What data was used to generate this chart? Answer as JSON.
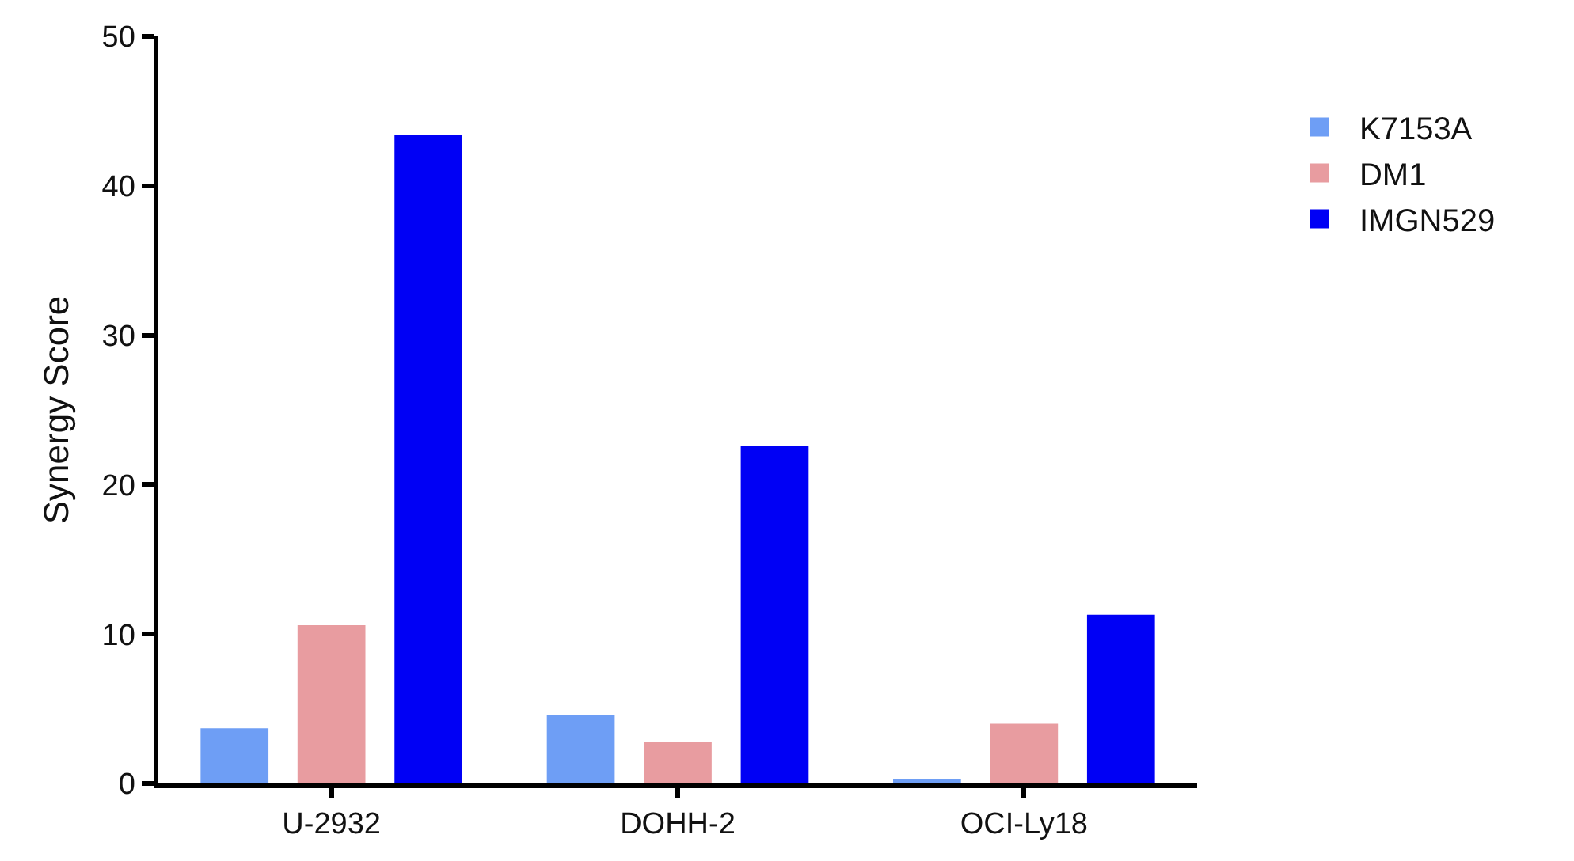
{
  "chart_data": {
    "type": "bar",
    "ylabel": "Synergy Score",
    "categories": [
      "U-2932",
      "DOHH-2",
      "OCI-Ly18"
    ],
    "series": [
      {
        "name": "K7153A",
        "color": "#6e9ef5",
        "values": [
          3.7,
          4.6,
          0.3
        ]
      },
      {
        "name": "DM1",
        "color": "#e89ca0",
        "values": [
          10.6,
          2.8,
          4.0
        ]
      },
      {
        "name": "IMGN529",
        "color": "#0000f5",
        "values": [
          43.4,
          22.6,
          11.3
        ]
      }
    ],
    "ylim": [
      0,
      50
    ],
    "yticks": [
      0,
      10,
      20,
      30,
      40,
      50
    ],
    "legend": "right"
  }
}
